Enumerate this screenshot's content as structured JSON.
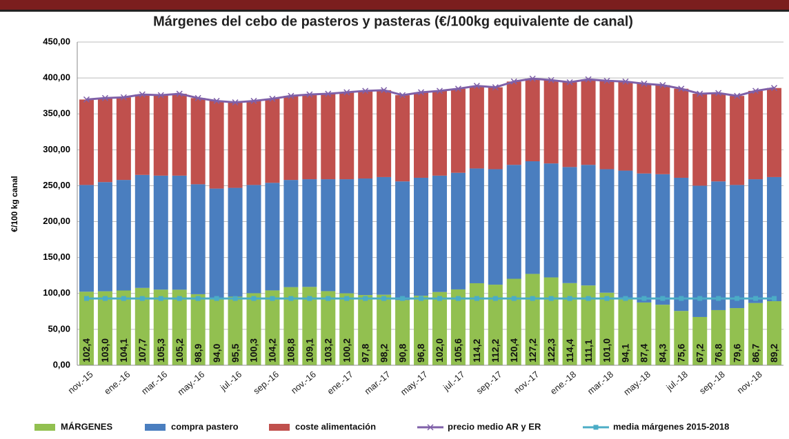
{
  "chart_data": {
    "type": "bar",
    "title": "Márgenes del cebo de pasteros y pasteras  (€/100kg equivalente de canal)",
    "y_label": "€/100 kg canal",
    "categories": [
      "nov.-15",
      null,
      "ene.-16",
      null,
      "mar.-16",
      null,
      "may.-16",
      null,
      "jul.-16",
      null,
      "sep.-16",
      null,
      "nov.-16",
      null,
      "ene.-17",
      null,
      "mar.-17",
      null,
      "may.-17",
      null,
      "jul.-17",
      null,
      "sep.-17",
      null,
      "nov.-17",
      null,
      "ene.-18",
      null,
      "mar.-18",
      null,
      "may.-18",
      null,
      "jul.-18",
      null,
      "sep.-18",
      null,
      "nov.-18",
      null
    ],
    "series": [
      {
        "name": "MÁRGENES",
        "kind": "bar",
        "color": "#92c050",
        "values": [
          102.4,
          103.0,
          104.1,
          107.7,
          105.3,
          105.2,
          98.9,
          94.0,
          95.5,
          100.3,
          104.2,
          108.8,
          109.1,
          103.2,
          100.2,
          97.8,
          98.2,
          90.8,
          96.8,
          102.0,
          105.6,
          114.2,
          112.2,
          120.4,
          127.2,
          122.3,
          114.4,
          111.1,
          101.0,
          94.1,
          87.4,
          84.3,
          75.6,
          67.2,
          76.8,
          79.6,
          86.7,
          89.2
        ],
        "value_labels": [
          "102,4",
          "103,0",
          "104,1",
          "107,7",
          "105,3",
          "105,2",
          "98,9",
          "94,0",
          "95,5",
          "100,3",
          "104,2",
          "108,8",
          "109,1",
          "103,2",
          "100,2",
          "97,8",
          "98,2",
          "90,8",
          "96,8",
          "102,0",
          "105,6",
          "114,2",
          "112,2",
          "120,4",
          "127,2",
          "122,3",
          "114,4",
          "111,1",
          "101,0",
          "94,1",
          "87,4",
          "84,3",
          "75,6",
          "67,2",
          "76,8",
          "79,6",
          "86,7",
          "89,2"
        ]
      },
      {
        "name": "compra pastero",
        "kind": "bar",
        "color": "#4a7ebf",
        "values": [
          148.6,
          152.0,
          153.9,
          157.3,
          158.7,
          158.8,
          153.1,
          152.0,
          151.5,
          150.7,
          149.8,
          149.2,
          149.9,
          155.8,
          158.8,
          162.2,
          163.8,
          165.2,
          164.2,
          162.0,
          162.4,
          159.8,
          160.8,
          158.6,
          156.8,
          158.7,
          161.6,
          167.9,
          172.0,
          176.9,
          179.6,
          181.7,
          185.4,
          182.8,
          179.2,
          171.4,
          172.3,
          172.8
        ]
      },
      {
        "name": "coste alimentación",
        "kind": "bar",
        "color": "#c0504d",
        "values": [
          119,
          117,
          115,
          112,
          112,
          114,
          120,
          122,
          119,
          117,
          117,
          117,
          118,
          119,
          121,
          122,
          121,
          120,
          119,
          118,
          117,
          115,
          114,
          116,
          115,
          116,
          118,
          119,
          123,
          124,
          125,
          124,
          124,
          128,
          123,
          124,
          123,
          124
        ]
      },
      {
        "name": "precio medio AR y ER",
        "kind": "line",
        "marker": "x",
        "color": "#7f60a8",
        "values": [
          370,
          372,
          373,
          377,
          376,
          378,
          372,
          368,
          366,
          368,
          371,
          375,
          377,
          378,
          380,
          382,
          383,
          376,
          380,
          382,
          385,
          389,
          387,
          395,
          399,
          397,
          394,
          398,
          396,
          395,
          392,
          390,
          385,
          378,
          379,
          375,
          382,
          386
        ]
      },
      {
        "name": "media márgenes 2015-2018",
        "kind": "line",
        "marker": "square",
        "color": "#4bacc6",
        "values": [
          93,
          93,
          93,
          93,
          93,
          93,
          93,
          93,
          93,
          93,
          93,
          93,
          93,
          93,
          93,
          93,
          93,
          93,
          93,
          93,
          93,
          93,
          93,
          93,
          93,
          93,
          93,
          93,
          93,
          93,
          93,
          93,
          93,
          93,
          93,
          93,
          93,
          93
        ]
      }
    ],
    "ylim": [
      0,
      450
    ],
    "yticks": [
      {
        "value": 0,
        "label": "0,00"
      },
      {
        "value": 50,
        "label": "50,00"
      },
      {
        "value": 100,
        "label": "100,00"
      },
      {
        "value": 150,
        "label": "150,00"
      },
      {
        "value": 200,
        "label": "200,00"
      },
      {
        "value": 250,
        "label": "250,00"
      },
      {
        "value": 300,
        "label": "300,00"
      },
      {
        "value": 350,
        "label": "350,00"
      },
      {
        "value": 400,
        "label": "400,00"
      },
      {
        "value": 450,
        "label": "450,00"
      }
    ],
    "grid": true
  }
}
